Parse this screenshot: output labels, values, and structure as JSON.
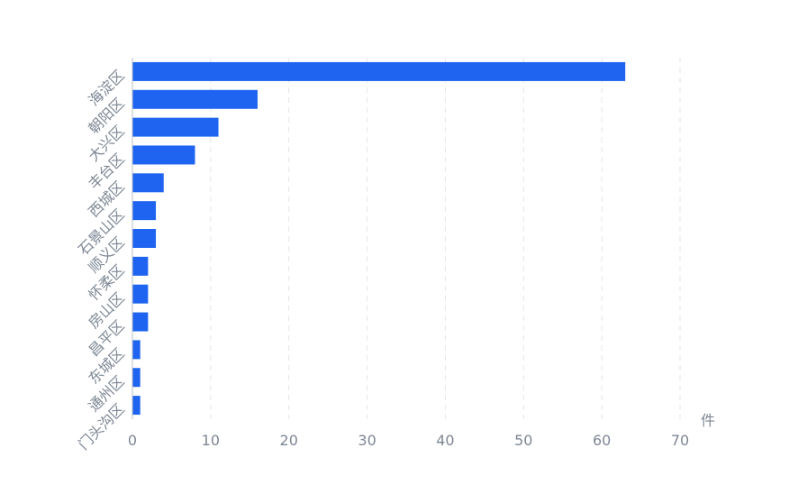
{
  "chart_data": {
    "type": "bar",
    "orientation": "horizontal",
    "categories": [
      "海淀区",
      "朝阳区",
      "大兴区",
      "丰台区",
      "西城区",
      "石景山区",
      "顺义区",
      "怀柔区",
      "房山区",
      "昌平区",
      "东城区",
      "通州区",
      "门头沟区"
    ],
    "values": [
      63,
      16,
      11,
      8,
      4,
      3,
      3,
      2,
      2,
      2,
      1,
      1,
      1
    ],
    "x_ticks": [
      "0",
      "10",
      "20",
      "30",
      "40",
      "50",
      "60",
      "70"
    ],
    "xlim": [
      0,
      70
    ],
    "x_unit": "件",
    "title": "",
    "xlabel": "",
    "ylabel": "",
    "grid": true,
    "bar_color": "#1e64f0"
  }
}
